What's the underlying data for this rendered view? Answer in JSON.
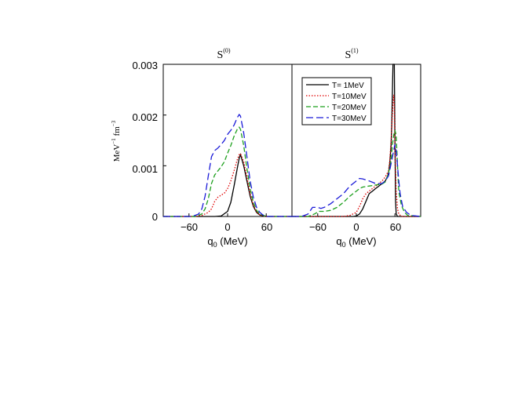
{
  "chart_data": [
    {
      "type": "line",
      "title": "S",
      "title_sup": "(0)",
      "xlabel": "q",
      "xlabel_sub": "0",
      "xlabel_unit": " (MeV)",
      "ylabel": "MeV",
      "ylabel_sup1": "−1",
      "ylabel_mid": " fm",
      "ylabel_sup2": "−3",
      "xlim": [
        -100,
        100
      ],
      "ylim": [
        0,
        0.003
      ],
      "xticks": [
        -60,
        0,
        60
      ],
      "xtick_labels": [
        "−60",
        "0",
        "60"
      ],
      "yticks": [
        0,
        0.001,
        0.002,
        0.003
      ],
      "ytick_labels": [
        "0",
        "0.001",
        "0.002",
        "0.003"
      ],
      "grid": false,
      "series": [
        {
          "name": "T= 1MeV",
          "color": "#000000",
          "style": "solid",
          "x": [
            -100,
            -20,
            -10,
            0,
            5,
            10,
            15,
            18,
            20,
            25,
            30,
            35,
            40,
            45,
            50,
            60,
            100
          ],
          "y": [
            0,
            0,
            1e-05,
            0.0001,
            0.00028,
            0.0006,
            0.00095,
            0.00115,
            0.00122,
            0.001,
            0.0007,
            0.0004,
            0.0002,
            8e-05,
            3e-05,
            0,
            0
          ]
        },
        {
          "name": "T=10MeV",
          "color": "#e00000",
          "style": "dotted",
          "x": [
            -100,
            -50,
            -40,
            -30,
            -25,
            -20,
            -15,
            -10,
            -5,
            0,
            5,
            10,
            15,
            18,
            20,
            25,
            30,
            35,
            40,
            45,
            50,
            60,
            100
          ],
          "y": [
            0,
            0,
            2e-05,
            8e-05,
            0.00015,
            0.0003,
            0.00038,
            0.00042,
            0.00046,
            0.00055,
            0.0007,
            0.0009,
            0.00112,
            0.00122,
            0.00124,
            0.00108,
            0.00078,
            0.00045,
            0.00022,
            9e-05,
            3e-05,
            0,
            0
          ]
        },
        {
          "name": "T=20MeV",
          "color": "#1ea01e",
          "style": "dashdot",
          "x": [
            -100,
            -50,
            -40,
            -35,
            -30,
            -25,
            -20,
            -15,
            -10,
            -5,
            0,
            5,
            10,
            15,
            18,
            20,
            25,
            30,
            35,
            40,
            45,
            50,
            60,
            100
          ],
          "y": [
            0,
            0,
            5e-05,
            0.00015,
            0.00035,
            0.00065,
            0.00082,
            0.0009,
            0.00098,
            0.00108,
            0.00125,
            0.0014,
            0.00158,
            0.00172,
            0.00176,
            0.00172,
            0.0014,
            0.00095,
            0.00055,
            0.00028,
            0.00012,
            5e-05,
            0,
            0
          ]
        },
        {
          "name": "T=30MeV",
          "color": "#1a1ad8",
          "style": "longdash",
          "x": [
            -100,
            -55,
            -45,
            -40,
            -35,
            -30,
            -25,
            -20,
            -15,
            -10,
            -5,
            0,
            5,
            10,
            15,
            18,
            20,
            25,
            30,
            35,
            40,
            45,
            50,
            55,
            60,
            100
          ],
          "y": [
            0,
            0,
            5e-05,
            0.00015,
            0.0004,
            0.0008,
            0.00118,
            0.0013,
            0.00135,
            0.00142,
            0.0015,
            0.00162,
            0.0017,
            0.0018,
            0.00195,
            0.00201,
            0.00198,
            0.00165,
            0.00118,
            0.0007,
            0.00038,
            0.00018,
            8e-05,
            3e-05,
            0,
            0
          ]
        }
      ]
    },
    {
      "type": "line",
      "title": "S",
      "title_sup": "(1)",
      "xlabel": "q",
      "xlabel_sub": "0",
      "xlabel_unit": " (MeV)",
      "xlim": [
        -100,
        100
      ],
      "ylim": [
        0,
        0.003
      ],
      "xticks": [
        -60,
        0,
        60
      ],
      "xtick_labels": [
        "−60",
        "0",
        "60"
      ],
      "grid": false,
      "legend_position": "top-right",
      "series": [
        {
          "name": "T= 1MeV",
          "color": "#000000",
          "style": "solid",
          "x": [
            -100,
            -5,
            0,
            5,
            10,
            15,
            20,
            25,
            30,
            35,
            40,
            45,
            48,
            50,
            52,
            54,
            55,
            56,
            57,
            58,
            59,
            60,
            61,
            62,
            64,
            100
          ],
          "y": [
            0,
            0,
            1e-05,
            5e-05,
            0.00015,
            0.0003,
            0.00045,
            0.0005,
            0.00055,
            0.0006,
            0.00065,
            0.0007,
            0.00078,
            0.00085,
            0.00105,
            0.0014,
            0.0018,
            0.0024,
            0.003,
            0.003,
            0.003,
            0.0015,
            0.0003,
            5e-05,
            0,
            0
          ]
        },
        {
          "name": "T=10MeV",
          "color": "#e00000",
          "style": "dotted",
          "x": [
            -100,
            -20,
            -10,
            0,
            5,
            10,
            15,
            20,
            25,
            30,
            35,
            40,
            45,
            50,
            52,
            54,
            56,
            58,
            59,
            60,
            62,
            64,
            66,
            70,
            100
          ],
          "y": [
            0,
            0,
            2e-05,
            8e-05,
            0.0002,
            0.00035,
            0.00045,
            0.0005,
            0.00055,
            0.0006,
            0.00065,
            0.0007,
            0.00078,
            0.0009,
            0.0011,
            0.0015,
            0.002,
            0.0024,
            0.0022,
            0.0014,
            0.0005,
            0.00015,
            5e-05,
            0,
            0
          ]
        },
        {
          "name": "T=20MeV",
          "color": "#1ea01e",
          "style": "dashdot",
          "x": [
            -100,
            -75,
            -65,
            -58,
            -50,
            -40,
            -30,
            -20,
            -10,
            0,
            5,
            10,
            20,
            30,
            40,
            45,
            50,
            54,
            56,
            58,
            60,
            62,
            64,
            66,
            70,
            75,
            80,
            100
          ],
          "y": [
            0,
            0,
            5e-05,
            0.0001,
            0.0001,
            0.00012,
            0.00018,
            0.00028,
            0.0004,
            0.0005,
            0.00055,
            0.00058,
            0.0006,
            0.00062,
            0.00064,
            0.00068,
            0.00085,
            0.0011,
            0.0014,
            0.0016,
            0.0017,
            0.0016,
            0.001,
            0.0005,
            0.00022,
            8e-05,
            2e-05,
            0
          ]
        },
        {
          "name": "T=30MeV",
          "color": "#1a1ad8",
          "style": "longdash",
          "x": [
            -100,
            -85,
            -75,
            -68,
            -60,
            -55,
            -50,
            -40,
            -30,
            -20,
            -10,
            0,
            5,
            10,
            20,
            30,
            40,
            45,
            50,
            55,
            58,
            60,
            62,
            64,
            66,
            68,
            72,
            78,
            85,
            100
          ],
          "y": [
            0,
            0,
            5e-05,
            0.00018,
            0.00018,
            0.00016,
            0.00018,
            0.00025,
            0.00035,
            0.00045,
            0.0006,
            0.0007,
            0.00075,
            0.00074,
            0.0007,
            0.00065,
            0.00065,
            0.0007,
            0.0008,
            0.0011,
            0.0013,
            0.00142,
            0.0013,
            0.001,
            0.0007,
            0.00045,
            0.0002,
            8e-05,
            2e-05,
            0
          ]
        }
      ]
    }
  ]
}
